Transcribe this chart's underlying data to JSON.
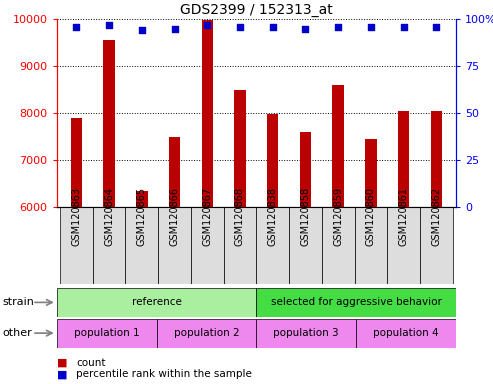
{
  "title": "GDS2399 / 152313_at",
  "samples": [
    "GSM120863",
    "GSM120864",
    "GSM120865",
    "GSM120866",
    "GSM120867",
    "GSM120868",
    "GSM120838",
    "GSM120858",
    "GSM120859",
    "GSM120860",
    "GSM120861",
    "GSM120862"
  ],
  "counts": [
    7900,
    9550,
    6350,
    7500,
    9980,
    8500,
    7980,
    7600,
    8600,
    7450,
    8050,
    8050
  ],
  "percentiles": [
    96,
    97,
    94,
    95,
    97,
    96,
    96,
    95,
    96,
    96,
    96,
    96
  ],
  "ylim_left": [
    6000,
    10000
  ],
  "ylim_right": [
    0,
    100
  ],
  "yticks_left": [
    6000,
    7000,
    8000,
    9000,
    10000
  ],
  "yticks_right": [
    0,
    25,
    50,
    75,
    100
  ],
  "bar_color": "#bb0000",
  "dot_color": "#0000cc",
  "strain_ref_color": "#aaeea0",
  "strain_sel_color": "#44dd44",
  "other_color": "#ee88ee",
  "grid_color": "#555555",
  "tick_label_fontsize": 7,
  "title_fontsize": 10,
  "bar_width": 0.35
}
